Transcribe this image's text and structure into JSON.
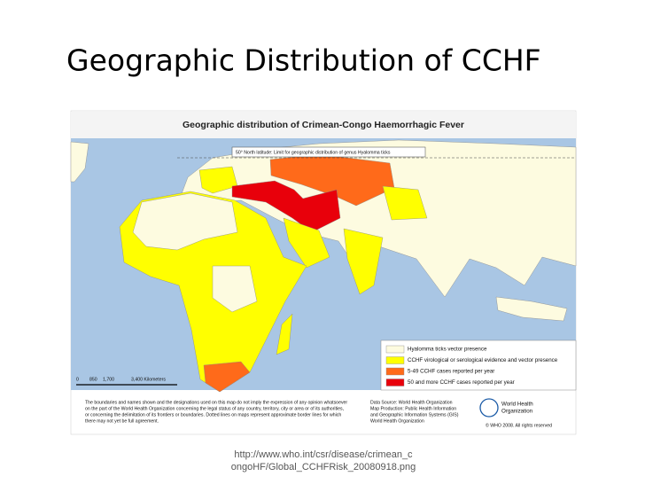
{
  "slide": {
    "title": "Geographic Distribution of CCHF",
    "caption": [
      "http://www.who.int/csr/disease/crimean_c",
      "ongoHF/Global_CCHFRisk_20080918.png"
    ]
  },
  "map": {
    "title": "Geographic distribution of Crimean-Congo Haemorrhagic Fever",
    "annotation": "50° North latitude: Limit for geographic distribution of genus Hyalomma ticks",
    "legend": [
      {
        "label": "Hyalomma ticks vector presence",
        "color": "#fdfbe0"
      },
      {
        "label": "CCHF virological or serological evidence and vector presence",
        "color": "#ffff00"
      },
      {
        "label": "5-49 CCHF cases reported per year",
        "color": "#ff6a1a"
      },
      {
        "label": "50 and more CCHF cases reported per year",
        "color": "#e8000b"
      }
    ],
    "scale": [
      "0",
      "850",
      "1,700",
      "3,400 Kilometers"
    ],
    "disclaimer": [
      "The boundaries and names shown and the designations used on this map do not imply the expression of any opinion whatsoever",
      "on the part of the World Health Organization concerning the legal status of any country, territory, city or area or of its authorities,",
      "or concerning the delimitation of its frontiers or boundaries. Dotted lines on maps represent approximate border lines for which",
      "there may not yet be full agreement."
    ],
    "source": [
      "Data Source: World Health Organization",
      "Map Production: Public Health Information",
      "and Geographic Information Systems (GIS)",
      "World Health Organization"
    ],
    "logo": [
      "World Health",
      "Organization"
    ],
    "copyright": "© WHO 2008. All rights reserved"
  }
}
